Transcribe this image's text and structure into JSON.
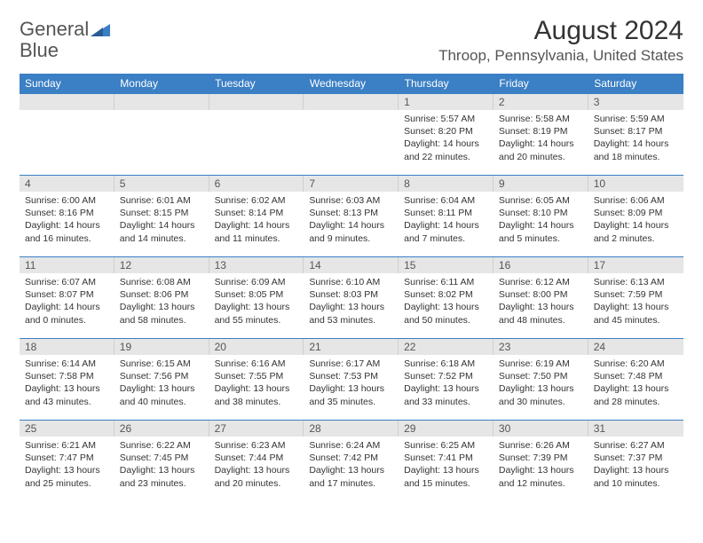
{
  "brand": {
    "name_part1": "General",
    "name_part2": "Blue"
  },
  "title": "August 2024",
  "location": "Throop, Pennsylvania, United States",
  "colors": {
    "header_bg": "#3b7fc4",
    "header_text": "#ffffff",
    "daynum_bg": "#e6e6e6",
    "daynum_text": "#555555",
    "body_text": "#333333",
    "rule": "#3b7fc4",
    "page_bg": "#ffffff"
  },
  "typography": {
    "title_fontsize": 30,
    "location_fontsize": 17,
    "dayname_fontsize": 12,
    "daynum_fontsize": 12,
    "body_fontsize": 10.5
  },
  "day_names": [
    "Sunday",
    "Monday",
    "Tuesday",
    "Wednesday",
    "Thursday",
    "Friday",
    "Saturday"
  ],
  "weeks": [
    [
      null,
      null,
      null,
      null,
      {
        "n": "1",
        "sr": "Sunrise: 5:57 AM",
        "ss": "Sunset: 8:20 PM",
        "dl1": "Daylight: 14 hours",
        "dl2": "and 22 minutes."
      },
      {
        "n": "2",
        "sr": "Sunrise: 5:58 AM",
        "ss": "Sunset: 8:19 PM",
        "dl1": "Daylight: 14 hours",
        "dl2": "and 20 minutes."
      },
      {
        "n": "3",
        "sr": "Sunrise: 5:59 AM",
        "ss": "Sunset: 8:17 PM",
        "dl1": "Daylight: 14 hours",
        "dl2": "and 18 minutes."
      }
    ],
    [
      {
        "n": "4",
        "sr": "Sunrise: 6:00 AM",
        "ss": "Sunset: 8:16 PM",
        "dl1": "Daylight: 14 hours",
        "dl2": "and 16 minutes."
      },
      {
        "n": "5",
        "sr": "Sunrise: 6:01 AM",
        "ss": "Sunset: 8:15 PM",
        "dl1": "Daylight: 14 hours",
        "dl2": "and 14 minutes."
      },
      {
        "n": "6",
        "sr": "Sunrise: 6:02 AM",
        "ss": "Sunset: 8:14 PM",
        "dl1": "Daylight: 14 hours",
        "dl2": "and 11 minutes."
      },
      {
        "n": "7",
        "sr": "Sunrise: 6:03 AM",
        "ss": "Sunset: 8:13 PM",
        "dl1": "Daylight: 14 hours",
        "dl2": "and 9 minutes."
      },
      {
        "n": "8",
        "sr": "Sunrise: 6:04 AM",
        "ss": "Sunset: 8:11 PM",
        "dl1": "Daylight: 14 hours",
        "dl2": "and 7 minutes."
      },
      {
        "n": "9",
        "sr": "Sunrise: 6:05 AM",
        "ss": "Sunset: 8:10 PM",
        "dl1": "Daylight: 14 hours",
        "dl2": "and 5 minutes."
      },
      {
        "n": "10",
        "sr": "Sunrise: 6:06 AM",
        "ss": "Sunset: 8:09 PM",
        "dl1": "Daylight: 14 hours",
        "dl2": "and 2 minutes."
      }
    ],
    [
      {
        "n": "11",
        "sr": "Sunrise: 6:07 AM",
        "ss": "Sunset: 8:07 PM",
        "dl1": "Daylight: 14 hours",
        "dl2": "and 0 minutes."
      },
      {
        "n": "12",
        "sr": "Sunrise: 6:08 AM",
        "ss": "Sunset: 8:06 PM",
        "dl1": "Daylight: 13 hours",
        "dl2": "and 58 minutes."
      },
      {
        "n": "13",
        "sr": "Sunrise: 6:09 AM",
        "ss": "Sunset: 8:05 PM",
        "dl1": "Daylight: 13 hours",
        "dl2": "and 55 minutes."
      },
      {
        "n": "14",
        "sr": "Sunrise: 6:10 AM",
        "ss": "Sunset: 8:03 PM",
        "dl1": "Daylight: 13 hours",
        "dl2": "and 53 minutes."
      },
      {
        "n": "15",
        "sr": "Sunrise: 6:11 AM",
        "ss": "Sunset: 8:02 PM",
        "dl1": "Daylight: 13 hours",
        "dl2": "and 50 minutes."
      },
      {
        "n": "16",
        "sr": "Sunrise: 6:12 AM",
        "ss": "Sunset: 8:00 PM",
        "dl1": "Daylight: 13 hours",
        "dl2": "and 48 minutes."
      },
      {
        "n": "17",
        "sr": "Sunrise: 6:13 AM",
        "ss": "Sunset: 7:59 PM",
        "dl1": "Daylight: 13 hours",
        "dl2": "and 45 minutes."
      }
    ],
    [
      {
        "n": "18",
        "sr": "Sunrise: 6:14 AM",
        "ss": "Sunset: 7:58 PM",
        "dl1": "Daylight: 13 hours",
        "dl2": "and 43 minutes."
      },
      {
        "n": "19",
        "sr": "Sunrise: 6:15 AM",
        "ss": "Sunset: 7:56 PM",
        "dl1": "Daylight: 13 hours",
        "dl2": "and 40 minutes."
      },
      {
        "n": "20",
        "sr": "Sunrise: 6:16 AM",
        "ss": "Sunset: 7:55 PM",
        "dl1": "Daylight: 13 hours",
        "dl2": "and 38 minutes."
      },
      {
        "n": "21",
        "sr": "Sunrise: 6:17 AM",
        "ss": "Sunset: 7:53 PM",
        "dl1": "Daylight: 13 hours",
        "dl2": "and 35 minutes."
      },
      {
        "n": "22",
        "sr": "Sunrise: 6:18 AM",
        "ss": "Sunset: 7:52 PM",
        "dl1": "Daylight: 13 hours",
        "dl2": "and 33 minutes."
      },
      {
        "n": "23",
        "sr": "Sunrise: 6:19 AM",
        "ss": "Sunset: 7:50 PM",
        "dl1": "Daylight: 13 hours",
        "dl2": "and 30 minutes."
      },
      {
        "n": "24",
        "sr": "Sunrise: 6:20 AM",
        "ss": "Sunset: 7:48 PM",
        "dl1": "Daylight: 13 hours",
        "dl2": "and 28 minutes."
      }
    ],
    [
      {
        "n": "25",
        "sr": "Sunrise: 6:21 AM",
        "ss": "Sunset: 7:47 PM",
        "dl1": "Daylight: 13 hours",
        "dl2": "and 25 minutes."
      },
      {
        "n": "26",
        "sr": "Sunrise: 6:22 AM",
        "ss": "Sunset: 7:45 PM",
        "dl1": "Daylight: 13 hours",
        "dl2": "and 23 minutes."
      },
      {
        "n": "27",
        "sr": "Sunrise: 6:23 AM",
        "ss": "Sunset: 7:44 PM",
        "dl1": "Daylight: 13 hours",
        "dl2": "and 20 minutes."
      },
      {
        "n": "28",
        "sr": "Sunrise: 6:24 AM",
        "ss": "Sunset: 7:42 PM",
        "dl1": "Daylight: 13 hours",
        "dl2": "and 17 minutes."
      },
      {
        "n": "29",
        "sr": "Sunrise: 6:25 AM",
        "ss": "Sunset: 7:41 PM",
        "dl1": "Daylight: 13 hours",
        "dl2": "and 15 minutes."
      },
      {
        "n": "30",
        "sr": "Sunrise: 6:26 AM",
        "ss": "Sunset: 7:39 PM",
        "dl1": "Daylight: 13 hours",
        "dl2": "and 12 minutes."
      },
      {
        "n": "31",
        "sr": "Sunrise: 6:27 AM",
        "ss": "Sunset: 7:37 PM",
        "dl1": "Daylight: 13 hours",
        "dl2": "and 10 minutes."
      }
    ]
  ]
}
